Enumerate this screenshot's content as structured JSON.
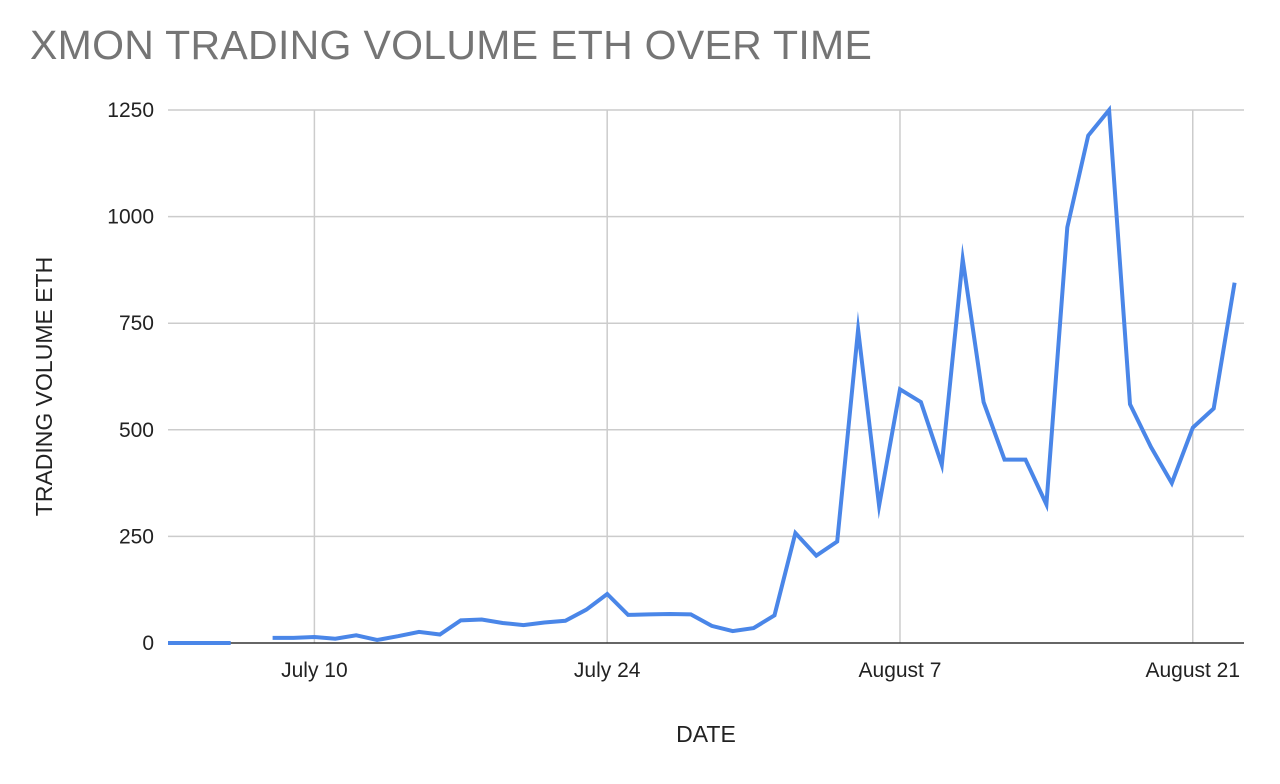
{
  "chart_data": {
    "type": "line",
    "title": "XMON TRADING VOLUME ETH OVER TIME",
    "xlabel": "DATE",
    "ylabel": "TRADING VOLUME ETH",
    "ylim": [
      0,
      1250
    ],
    "yticks": [
      0,
      250,
      500,
      750,
      1000,
      1250
    ],
    "xticks": [
      {
        "date": "2021-07-10",
        "label": "July 10"
      },
      {
        "date": "2021-07-24",
        "label": "July 24"
      },
      {
        "date": "2021-08-07",
        "label": "August 7"
      },
      {
        "date": "2021-08-21",
        "label": "August 21"
      }
    ],
    "xlim": [
      "2021-07-03",
      "2021-08-23"
    ],
    "grid": true,
    "legend": "none",
    "line_color": "#4a86e8",
    "series": [
      {
        "points": [
          [
            "2021-07-03",
            0
          ],
          [
            "2021-07-04",
            0
          ],
          [
            "2021-07-05",
            0
          ],
          [
            "2021-07-06",
            0
          ],
          [
            "2021-07-08",
            12
          ],
          [
            "2021-07-09",
            12
          ],
          [
            "2021-07-10",
            14
          ],
          [
            "2021-07-11",
            10
          ],
          [
            "2021-07-12",
            18
          ],
          [
            "2021-07-13",
            7
          ],
          [
            "2021-07-14",
            16
          ],
          [
            "2021-07-15",
            26
          ],
          [
            "2021-07-16",
            20
          ],
          [
            "2021-07-17",
            53
          ],
          [
            "2021-07-18",
            55
          ],
          [
            "2021-07-19",
            47
          ],
          [
            "2021-07-20",
            42
          ],
          [
            "2021-07-21",
            48
          ],
          [
            "2021-07-22",
            52
          ],
          [
            "2021-07-23",
            78
          ],
          [
            "2021-07-24",
            115
          ],
          [
            "2021-07-25",
            66
          ],
          [
            "2021-07-26",
            67
          ],
          [
            "2021-07-27",
            68
          ],
          [
            "2021-07-28",
            67
          ],
          [
            "2021-07-29",
            40
          ],
          [
            "2021-07-30",
            28
          ],
          [
            "2021-07-31",
            35
          ],
          [
            "2021-08-01",
            65
          ],
          [
            "2021-08-02",
            258
          ],
          [
            "2021-08-03",
            205
          ],
          [
            "2021-08-04",
            238
          ],
          [
            "2021-08-05",
            735
          ],
          [
            "2021-08-06",
            322
          ],
          [
            "2021-08-07",
            595
          ],
          [
            "2021-08-08",
            565
          ],
          [
            "2021-08-09",
            418
          ],
          [
            "2021-08-10",
            900
          ],
          [
            "2021-08-11",
            565
          ],
          [
            "2021-08-12",
            430
          ],
          [
            "2021-08-13",
            430
          ],
          [
            "2021-08-14",
            325
          ],
          [
            "2021-08-15",
            975
          ],
          [
            "2021-08-16",
            1190
          ],
          [
            "2021-08-17",
            1250
          ],
          [
            "2021-08-18",
            560
          ],
          [
            "2021-08-19",
            460
          ],
          [
            "2021-08-20",
            375
          ],
          [
            "2021-08-21",
            505
          ],
          [
            "2021-08-22",
            550
          ],
          [
            "2021-08-23",
            845
          ]
        ]
      }
    ]
  }
}
